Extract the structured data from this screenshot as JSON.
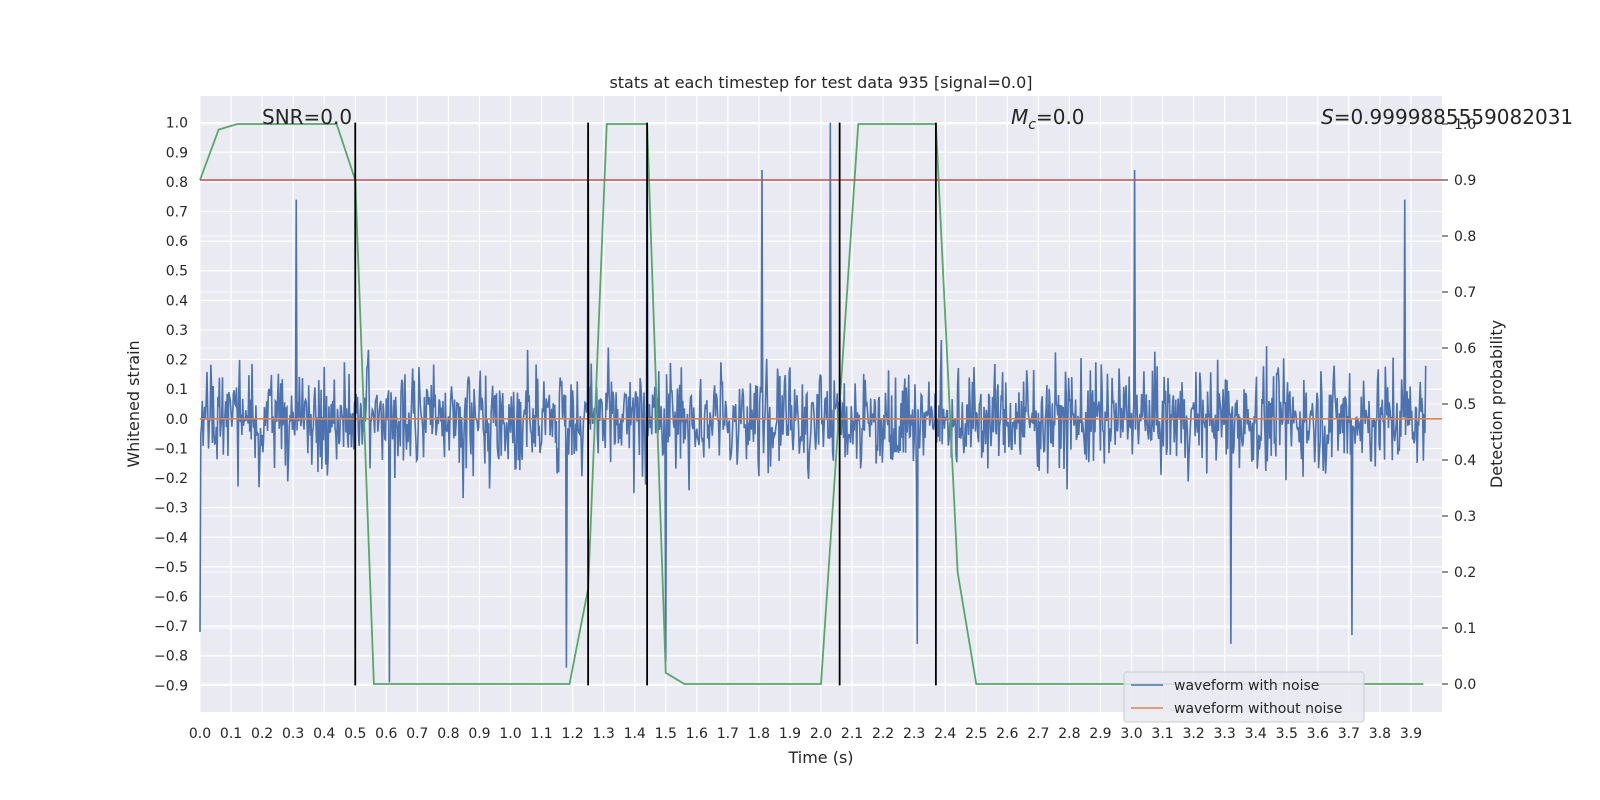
{
  "chart_data": {
    "type": "line",
    "title": "stats at each timestep for test data 935 [signal=0.0]",
    "xlabel": "Time (s)",
    "ylabel": "Whitened strain",
    "y2label": "Detection probability",
    "xlim": [
      0.0,
      4.0
    ],
    "ylim": [
      -0.99,
      1.09
    ],
    "y2lim": [
      -0.05,
      1.05
    ],
    "x_ticks": [
      "0.0",
      "0.1",
      "0.2",
      "0.3",
      "0.4",
      "0.5",
      "0.6",
      "0.7",
      "0.8",
      "0.9",
      "1.0",
      "1.1",
      "1.2",
      "1.3",
      "1.4",
      "1.5",
      "1.6",
      "1.7",
      "1.8",
      "1.9",
      "2.0",
      "2.1",
      "2.2",
      "2.3",
      "2.4",
      "2.5",
      "2.6",
      "2.7",
      "2.8",
      "2.9",
      "3.0",
      "3.1",
      "3.2",
      "3.3",
      "3.4",
      "3.5",
      "3.6",
      "3.7",
      "3.8",
      "3.9"
    ],
    "y_ticks": [
      "1.0",
      "0.9",
      "0.8",
      "0.7",
      "0.6",
      "0.5",
      "0.4",
      "0.3",
      "0.2",
      "0.1",
      "0.0",
      "−0.1",
      "−0.2",
      "−0.3",
      "−0.4",
      "−0.5",
      "−0.6",
      "−0.7",
      "−0.8",
      "−0.9"
    ],
    "y2_ticks": [
      "1.0",
      "0.9",
      "0.8",
      "0.7",
      "0.6",
      "0.5",
      "0.4",
      "0.3",
      "0.2",
      "0.1",
      "0.0"
    ],
    "grid": true,
    "legend_position": "bottom-right",
    "annotations": {
      "snr": "SNR=0.0",
      "mc_symbol": "M",
      "mc_sub": "c",
      "mc_value": "=0.0",
      "s_symbol": "S",
      "s_value": "=0.9999885559082031"
    },
    "series": [
      {
        "name": "waveform with noise",
        "axis": "left",
        "color": "#4c72b0",
        "description_value": "dense noise, amplitude about ±0.4 with spikes to about ±1.0",
        "peak_spikes": [
          {
            "x": 2.03,
            "y": 1.0
          },
          {
            "x": 1.25,
            "y": 0.97
          },
          {
            "x": 1.44,
            "y": 0.98
          },
          {
            "x": 3.01,
            "y": 0.84
          },
          {
            "x": 1.81,
            "y": 0.84
          },
          {
            "x": 0.31,
            "y": 0.74
          },
          {
            "x": 3.88,
            "y": 0.74
          },
          {
            "x": 0.61,
            "y": -0.89
          },
          {
            "x": 1.18,
            "y": -0.84
          },
          {
            "x": 2.31,
            "y": -0.76
          },
          {
            "x": 3.32,
            "y": -0.76
          },
          {
            "x": 3.71,
            "y": -0.73
          },
          {
            "x": 1.5,
            "y": -0.82
          },
          {
            "x": 0.0,
            "y": -0.72
          }
        ]
      },
      {
        "name": "waveform without noise",
        "axis": "left",
        "color": "#dd8452",
        "x": [
          0.0,
          4.0
        ],
        "y": [
          0.0,
          0.0
        ]
      },
      {
        "name": "",
        "axis": "right",
        "color": "#55a868",
        "x": [
          0.0,
          0.06,
          0.12,
          0.44,
          0.5,
          0.56,
          0.62,
          1.19,
          1.25,
          1.31,
          1.37,
          1.44,
          1.5,
          1.56,
          2.0,
          2.06,
          2.12,
          2.37,
          2.44,
          2.5,
          3.94
        ],
        "y": [
          0.9,
          0.99,
          1.0,
          1.0,
          0.9,
          0.0,
          0.0,
          0.0,
          0.17,
          1.0,
          1.0,
          1.0,
          0.02,
          0.0,
          0.0,
          0.5,
          1.0,
          1.0,
          0.2,
          0.0,
          0.0
        ]
      },
      {
        "name": "",
        "axis": "right",
        "color": "#c44e52",
        "x": [
          0.0,
          4.0
        ],
        "y": [
          0.9,
          0.9
        ]
      }
    ],
    "vertical_lines": [
      {
        "x": 0.5,
        "y_top": 1.0,
        "y_bottom": -0.9
      },
      {
        "x": 1.25,
        "y_top": 1.0,
        "y_bottom": -0.9
      },
      {
        "x": 1.44,
        "y_top": 1.0,
        "y_bottom": -0.9
      },
      {
        "x": 2.06,
        "y_top": 1.0,
        "y_bottom": -0.9
      },
      {
        "x": 2.37,
        "y_top": 1.0,
        "y_bottom": -0.9
      }
    ]
  }
}
